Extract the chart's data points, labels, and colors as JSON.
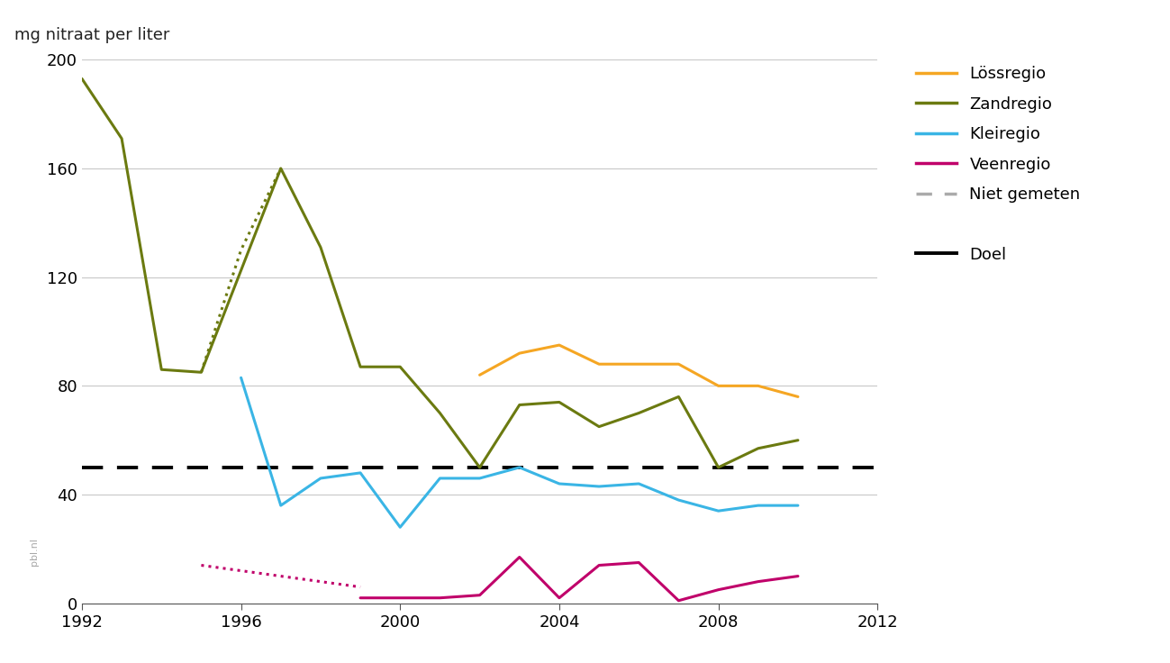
{
  "ylabel": "mg nitraat per liter",
  "ylim": [
    0,
    200
  ],
  "xlim": [
    1992,
    2012
  ],
  "yticks": [
    0,
    40,
    80,
    120,
    160,
    200
  ],
  "xticks": [
    1992,
    1996,
    2000,
    2004,
    2008,
    2012
  ],
  "doel_value": 50,
  "background_color": "#ffffff",
  "grid_color": "#c8c8c8",
  "lossregio": {
    "color": "#f5a623",
    "x": [
      2002,
      2003,
      2004,
      2005,
      2006,
      2007,
      2008,
      2009,
      2010
    ],
    "y": [
      84,
      92,
      95,
      88,
      88,
      88,
      80,
      80,
      76
    ]
  },
  "zandregio_solid": {
    "color": "#6b7a10",
    "x": [
      1992,
      1993,
      1994,
      1995,
      1997,
      1998,
      1999,
      2000,
      2001,
      2002,
      2003,
      2004,
      2005,
      2006,
      2007,
      2008,
      2009,
      2010
    ],
    "y": [
      193,
      171,
      86,
      85,
      160,
      131,
      87,
      87,
      70,
      50,
      73,
      74,
      65,
      70,
      76,
      50,
      57,
      60
    ]
  },
  "zandregio_dotted": {
    "color": "#6b7a10",
    "x": [
      1995,
      1996,
      1997
    ],
    "y": [
      85,
      130,
      160
    ]
  },
  "kleiregio": {
    "color": "#3ab5e5",
    "x": [
      1996,
      1997,
      1998,
      1999,
      2000,
      2001,
      2002,
      2003,
      2004,
      2005,
      2006,
      2007,
      2008,
      2009,
      2010
    ],
    "y": [
      83,
      36,
      46,
      48,
      28,
      46,
      46,
      50,
      44,
      43,
      44,
      38,
      34,
      36,
      36
    ]
  },
  "veenregio_solid": {
    "color": "#c0006a",
    "x": [
      1999,
      2000,
      2001,
      2002,
      2003,
      2004,
      2005,
      2006,
      2007,
      2008,
      2009,
      2010
    ],
    "y": [
      2,
      2,
      2,
      3,
      17,
      2,
      14,
      15,
      1,
      5,
      8,
      10
    ]
  },
  "veenregio_dotted": {
    "color": "#c0006a",
    "x": [
      1995,
      1996,
      1997,
      1998,
      1999
    ],
    "y": [
      14,
      12,
      10,
      8,
      6
    ]
  },
  "legend_items": [
    {
      "label": "Lössregio",
      "color": "#f5a623",
      "linestyle": "solid"
    },
    {
      "label": "Zandregio",
      "color": "#6b7a10",
      "linestyle": "solid"
    },
    {
      "label": "Kleiregio",
      "color": "#3ab5e5",
      "linestyle": "solid"
    },
    {
      "label": "Veenregio",
      "color": "#c0006a",
      "linestyle": "solid"
    },
    {
      "label": "Niet gemeten",
      "color": "#aaaaaa",
      "linestyle": "dashed"
    },
    {
      "label": "Doel",
      "color": "#000000",
      "linestyle": "solid"
    }
  ],
  "watermark": "pbl.nl",
  "linewidth": 2.2
}
